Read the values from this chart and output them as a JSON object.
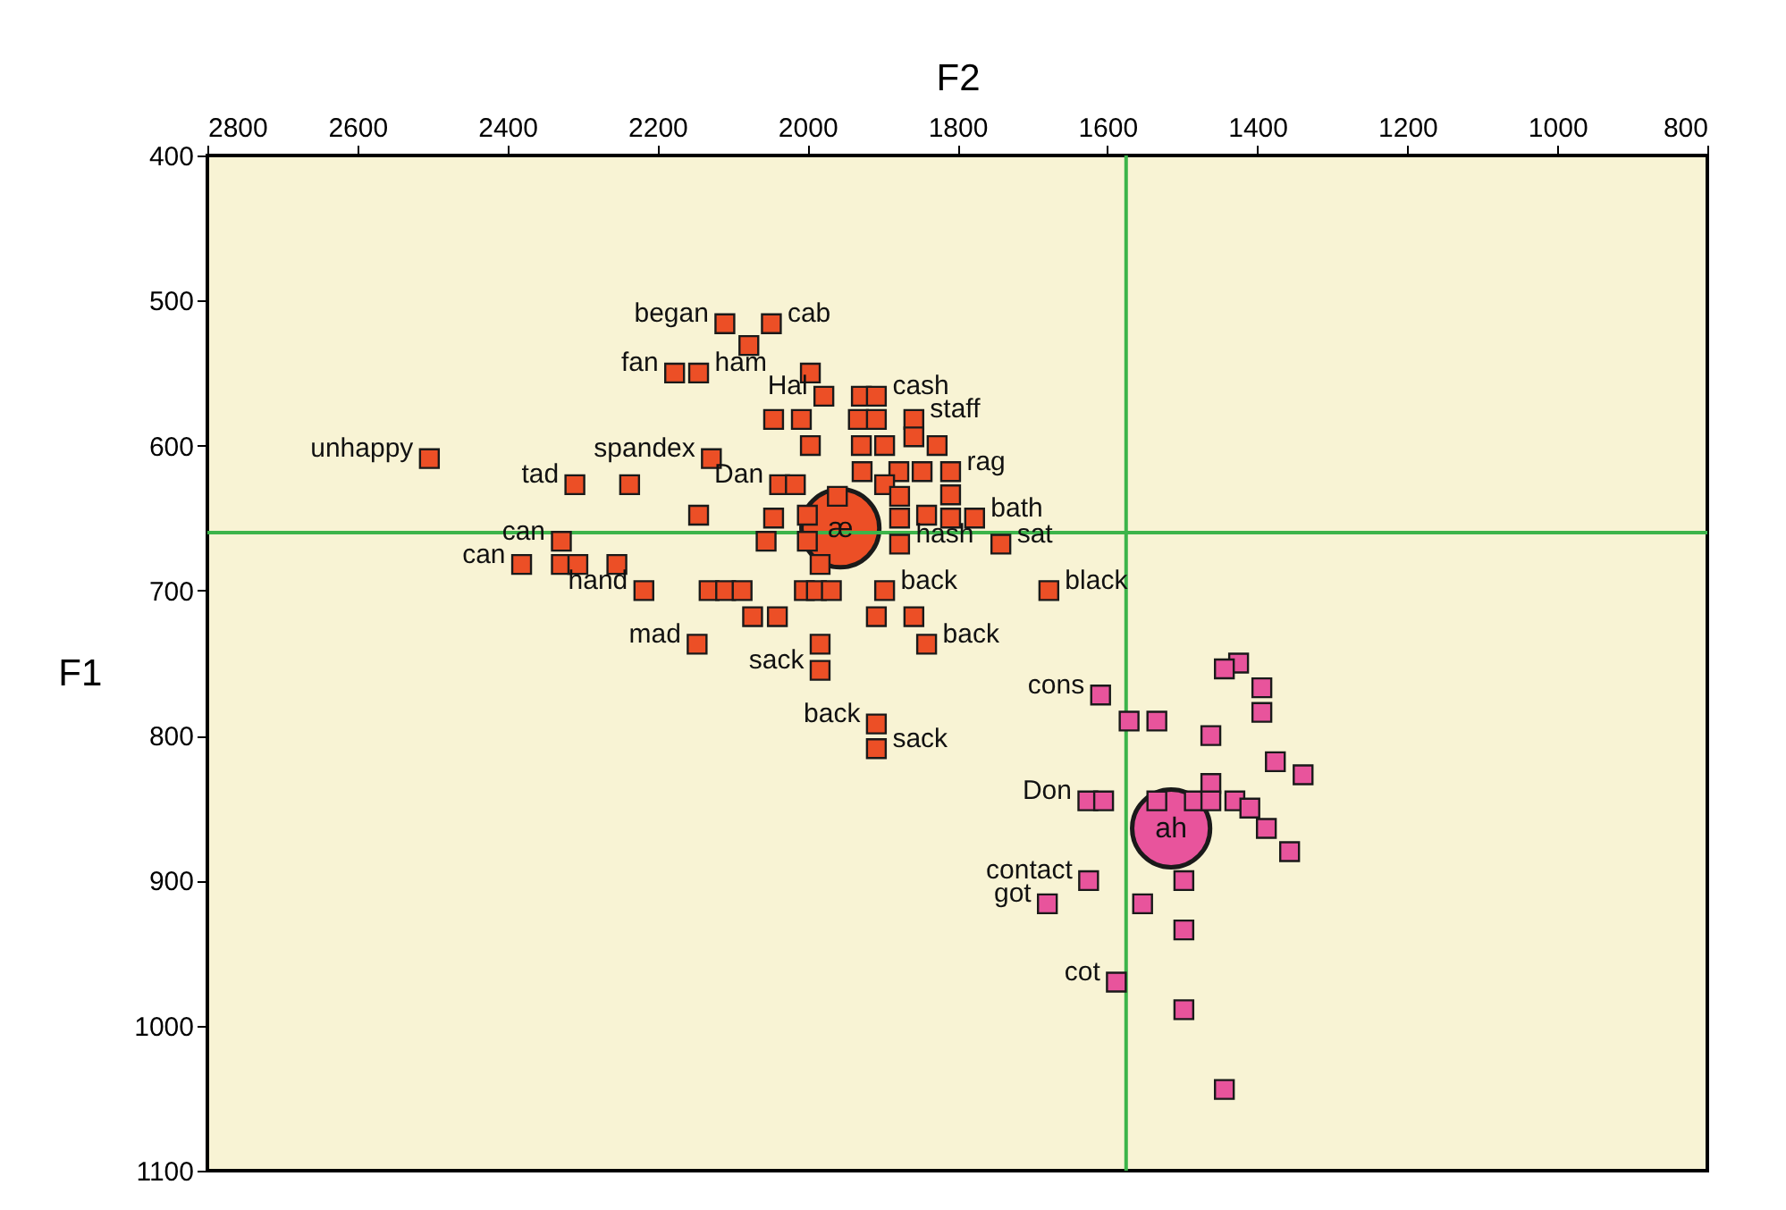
{
  "chart_data": {
    "type": "scatter",
    "xlabel": "F2",
    "ylabel": "F1",
    "xlim": [
      2800,
      800
    ],
    "ylim": [
      1100,
      400
    ],
    "xticks": [
      {
        "value": 2800,
        "label": "2800"
      },
      {
        "value": 2600,
        "label": "2600"
      },
      {
        "value": 2400,
        "label": "2400"
      },
      {
        "value": 2200,
        "label": "2200"
      },
      {
        "value": 2000,
        "label": "2000"
      },
      {
        "value": 1800,
        "label": "1800"
      },
      {
        "value": 1600,
        "label": "1600"
      },
      {
        "value": 1400,
        "label": "1400"
      },
      {
        "value": 1200,
        "label": "1200"
      },
      {
        "value": 1000,
        "label": "1000"
      },
      800
    ],
    "yticks": [
      400,
      500,
      600,
      700,
      800,
      900,
      {
        "value": 1000,
        "label": "1000"
      },
      {
        "value": 1100,
        "label": "1100"
      }
    ],
    "grid": false,
    "marker": "square",
    "ref_lines": [
      {
        "axis": "x",
        "value": 1575,
        "color": "#3cb44a"
      },
      {
        "axis": "y",
        "value": 660,
        "color": "#3cb44a"
      }
    ],
    "series": [
      {
        "color": "#ec4f26",
        "x": [
          2504,
          2110,
          2048,
          2078,
          2177,
          2145,
          2045,
          2128,
          2310,
          2237,
          2145,
          2045,
          2055,
          2328,
          2381,
          2328,
          2306,
          2254,
          2218,
          2131,
          2109,
          2087,
          2073,
          2040,
          2147,
          1996,
          1978,
          2008,
          1928,
          1908,
          1932,
          1908,
          1858,
          1858,
          1996,
          1928,
          1897,
          1827,
          2037,
          2016,
          1927,
          1878,
          1847,
          1809,
          1960,
          1897,
          1877,
          1809,
          2000,
          1877,
          1841,
          1809,
          1777,
          2000,
          1877,
          1742,
          1983,
          2004,
          1988,
          1968,
          1897,
          1678,
          1908,
          1858,
          1983,
          1841,
          1983,
          1908,
          1908
        ],
        "values": [
          609,
          516,
          516,
          531,
          550,
          550,
          582,
          609,
          627,
          627,
          648,
          650,
          666,
          666,
          682,
          682,
          682,
          682,
          700,
          700,
          700,
          700,
          718,
          718,
          737,
          550,
          566,
          582,
          566,
          566,
          582,
          582,
          582,
          594,
          600,
          600,
          600,
          600,
          627,
          627,
          618,
          618,
          618,
          618,
          635,
          627,
          635,
          634,
          648,
          650,
          648,
          650,
          650,
          666,
          668,
          668,
          682,
          700,
          700,
          700,
          700,
          700,
          718,
          718,
          737,
          737,
          755,
          792,
          809
        ]
      },
      {
        "color": "#e8549c",
        "x": [
          1425,
          1444,
          1394,
          1394,
          1609,
          1571,
          1534,
          1462,
          1376,
          1339,
          1626,
          1605,
          1534,
          1484,
          1462,
          1462,
          1430,
          1410,
          1388,
          1357,
          1625,
          1498,
          1680,
          1553,
          1498,
          1588,
          1498,
          1444
        ],
        "values": [
          750,
          754,
          767,
          784,
          772,
          790,
          790,
          800,
          818,
          827,
          845,
          845,
          845,
          845,
          833,
          845,
          845,
          850,
          864,
          880,
          900,
          900,
          916,
          916,
          934,
          970,
          989,
          1044
        ]
      },
      {
        "name": "æ",
        "color": "#ec4f26",
        "marker": "circle",
        "x": [
          1956
        ],
        "values": [
          657
        ]
      },
      {
        "name": "ah",
        "color": "#e8549c",
        "marker": "circle",
        "x": [
          1515
        ],
        "values": [
          864
        ]
      }
    ],
    "annotations": [
      {
        "text": "began",
        "x": 2110,
        "y": 516
      },
      {
        "text": "cab",
        "x": 2048,
        "y": 516
      },
      {
        "text": "Hal",
        "x": 1978,
        "y": 566
      },
      {
        "text": "fan",
        "x": 2177,
        "y": 550
      },
      {
        "text": "ham",
        "x": 2145,
        "y": 550
      },
      {
        "text": "cash",
        "x": 1908,
        "y": 566
      },
      {
        "text": "staff",
        "x": 1858,
        "y": 582
      },
      {
        "text": "unhappy",
        "x": 2504,
        "y": 609
      },
      {
        "text": "spandex",
        "x": 2128,
        "y": 609
      },
      {
        "text": "Dan",
        "x": 2037,
        "y": 627
      },
      {
        "text": "rag",
        "x": 1809,
        "y": 618
      },
      {
        "text": "tad",
        "x": 2310,
        "y": 627
      },
      {
        "text": "bath",
        "x": 1777,
        "y": 650
      },
      {
        "text": "can",
        "x": 2328,
        "y": 666
      },
      {
        "text": "hash",
        "x": 1877,
        "y": 668
      },
      {
        "text": "can",
        "x": 2381,
        "y": 682
      },
      {
        "text": "sat",
        "x": 1742,
        "y": 668
      },
      {
        "text": "hand",
        "x": 2218,
        "y": 700
      },
      {
        "text": "back",
        "x": 1897,
        "y": 700
      },
      {
        "text": "black",
        "x": 1678,
        "y": 700
      },
      {
        "text": "mad",
        "x": 2147,
        "y": 737
      },
      {
        "text": "back",
        "x": 1841,
        "y": 737
      },
      {
        "text": "sack",
        "x": 1983,
        "y": 755
      },
      {
        "text": "cons",
        "x": 1609,
        "y": 772
      },
      {
        "text": "back",
        "x": 1908,
        "y": 792
      },
      {
        "text": "sack",
        "x": 1908,
        "y": 809
      },
      {
        "text": "Don",
        "x": 1626,
        "y": 845
      },
      {
        "text": "contact",
        "x": 1625,
        "y": 900
      },
      {
        "text": "got",
        "x": 1680,
        "y": 916
      },
      {
        "text": "cot",
        "x": 1588,
        "y": 970
      }
    ]
  }
}
